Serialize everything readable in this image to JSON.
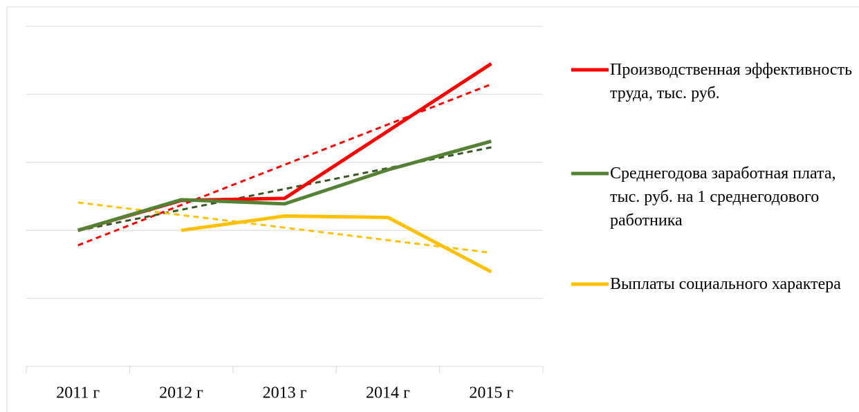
{
  "chart_data": {
    "type": "line",
    "categories": [
      "2011 г",
      "2012 г",
      "2013 г",
      "2014 г",
      "2015 г"
    ],
    "series": [
      {
        "name": "Производственная эффективность труда, тыс. руб.",
        "color": "#ff0000",
        "trendline": "linear",
        "trend_color": "#ff0000",
        "values": [
          2.0,
          2.44,
          2.47,
          3.46,
          4.45
        ]
      },
      {
        "name": "Среднегодова заработная плата, тыс. руб. на 1 среднегодового работника",
        "color": "#548235",
        "trendline": "linear",
        "trend_color": "#375623",
        "values": [
          2.0,
          2.45,
          2.39,
          2.89,
          3.31
        ]
      },
      {
        "name": "Выплаты социального характера",
        "color": "#ffc000",
        "trendline": "linear",
        "trend_color": "#ffc000",
        "values": [
          null,
          2.0,
          2.21,
          2.19,
          1.39
        ]
      }
    ],
    "ylim": [
      0,
      5
    ],
    "yticks": [
      0,
      1,
      2,
      3,
      4,
      5
    ],
    "grid": true,
    "legend": "right"
  }
}
